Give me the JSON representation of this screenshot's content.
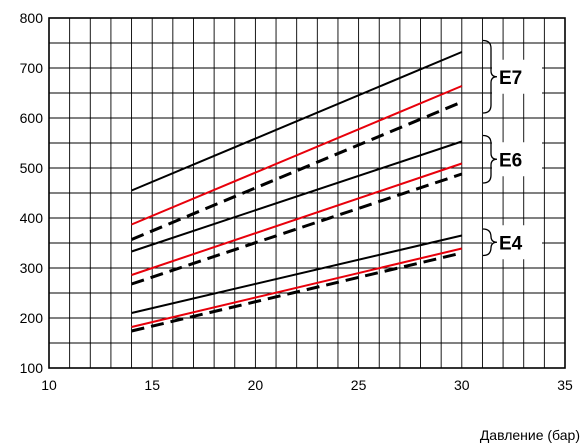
{
  "chart_data": {
    "type": "line",
    "xlabel": "Давление (бар)",
    "ylabel": "",
    "xlim": [
      10,
      35
    ],
    "ylim": [
      100,
      800
    ],
    "x_ticks": [
      10,
      15,
      20,
      25,
      30,
      35
    ],
    "y_ticks": [
      100,
      200,
      300,
      400,
      500,
      600,
      700,
      800
    ],
    "grid": true,
    "grid_minor_x": 1,
    "grid_minor_y": 50,
    "series": [
      {
        "group": "E7",
        "color": "#000000",
        "style": "solid",
        "x": [
          14,
          30
        ],
        "y": [
          455,
          732
        ]
      },
      {
        "group": "E7",
        "color": "#e8000b",
        "style": "solid",
        "x": [
          14,
          30
        ],
        "y": [
          387,
          664
        ]
      },
      {
        "group": "E7",
        "color": "#000000",
        "style": "dashed",
        "x": [
          14,
          30
        ],
        "y": [
          357,
          632
        ]
      },
      {
        "group": "E6",
        "color": "#000000",
        "style": "solid",
        "x": [
          14,
          30
        ],
        "y": [
          333,
          553
        ]
      },
      {
        "group": "E6",
        "color": "#e8000b",
        "style": "solid",
        "x": [
          14,
          30
        ],
        "y": [
          286,
          509
        ]
      },
      {
        "group": "E6",
        "color": "#000000",
        "style": "dashed",
        "x": [
          14,
          30
        ],
        "y": [
          268,
          488
        ]
      },
      {
        "group": "E4",
        "color": "#000000",
        "style": "solid",
        "x": [
          14,
          30
        ],
        "y": [
          210,
          365
        ]
      },
      {
        "group": "E4",
        "color": "#e8000b",
        "style": "solid",
        "x": [
          14,
          30
        ],
        "y": [
          182,
          339
        ]
      },
      {
        "group": "E4",
        "color": "#000000",
        "style": "dashed",
        "x": [
          14,
          30
        ],
        "y": [
          174,
          330
        ]
      }
    ],
    "group_labels": [
      {
        "text": "E7",
        "y_min": 610,
        "y_max": 755
      },
      {
        "text": "E6",
        "y_min": 470,
        "y_max": 565
      },
      {
        "text": "E4",
        "y_min": 325,
        "y_max": 378
      }
    ]
  }
}
